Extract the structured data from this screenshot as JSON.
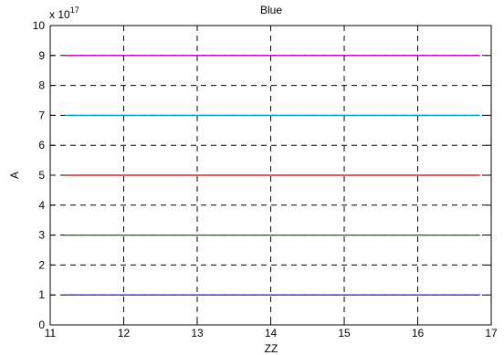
{
  "chart_data": {
    "type": "line",
    "title": "Blue",
    "xlabel": "ZZ",
    "ylabel": "A",
    "y_exponent_label": "x 10",
    "y_exponent": "17",
    "xlim": [
      11,
      17
    ],
    "ylim": [
      0,
      10
    ],
    "x_ticks": [
      "11",
      "12",
      "13",
      "14",
      "15",
      "16",
      "17"
    ],
    "y_ticks": [
      "0",
      "1",
      "2",
      "3",
      "4",
      "5",
      "6",
      "7",
      "8",
      "9",
      "10"
    ],
    "grid": true,
    "x_range": [
      11.2,
      16.85
    ],
    "series": [
      {
        "color": "#3333cc",
        "y": 1
      },
      {
        "color": "#008000",
        "y": 3
      },
      {
        "color": "#cc0000",
        "y": 5
      },
      {
        "color": "#00a0c0",
        "y": 7
      },
      {
        "color": "#b000b0",
        "y": 9
      }
    ]
  }
}
